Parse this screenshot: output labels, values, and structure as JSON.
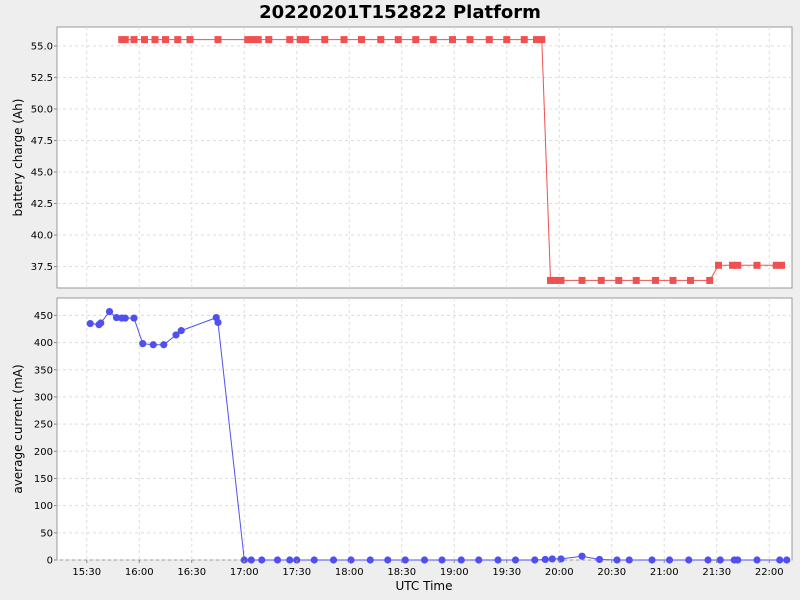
{
  "chart_data": {
    "type": "line",
    "title": "20220201T152822 Platform",
    "xlabel": "UTC Time",
    "x_ticks": [
      "15:30",
      "16:00",
      "16:30",
      "17:00",
      "17:30",
      "18:00",
      "18:30",
      "19:00",
      "19:30",
      "20:00",
      "20:30",
      "21:00",
      "21:30",
      "22:00"
    ],
    "x_tick_minutes": [
      930,
      960,
      990,
      1020,
      1050,
      1080,
      1110,
      1140,
      1170,
      1200,
      1230,
      1260,
      1290,
      1320
    ],
    "xlim_minutes": [
      913,
      1333
    ],
    "grid": true,
    "legend": "none",
    "panels": [
      {
        "ylabel": "battery charge (Ah)",
        "ylim": [
          35.8,
          56.5
        ],
        "y_ticks": [
          37.5,
          40.0,
          42.5,
          45.0,
          47.5,
          50.0,
          52.5,
          55.0
        ],
        "marker": "square",
        "color": "#f05050",
        "x": [
          950,
          952,
          957,
          963,
          969,
          975,
          982,
          989,
          1005,
          1022,
          1025,
          1028,
          1034,
          1046,
          1052,
          1055,
          1066,
          1077,
          1087,
          1098,
          1108,
          1118,
          1128,
          1139,
          1149,
          1160,
          1170,
          1180,
          1187,
          1190,
          1195,
          1198,
          1201,
          1213,
          1224,
          1234,
          1244,
          1255,
          1265,
          1275,
          1286,
          1291,
          1299,
          1302,
          1313,
          1324,
          1327
        ],
        "y": [
          55.5,
          55.5,
          55.5,
          55.5,
          55.5,
          55.5,
          55.5,
          55.5,
          55.5,
          55.5,
          55.5,
          55.5,
          55.5,
          55.5,
          55.5,
          55.5,
          55.5,
          55.5,
          55.5,
          55.5,
          55.5,
          55.5,
          55.5,
          55.5,
          55.5,
          55.5,
          55.5,
          55.5,
          55.5,
          55.5,
          36.4,
          36.4,
          36.4,
          36.4,
          36.4,
          36.4,
          36.4,
          36.4,
          36.4,
          36.4,
          36.4,
          37.6,
          37.6,
          37.6,
          37.6,
          37.6,
          37.6
        ]
      },
      {
        "ylabel": "average current (mA)",
        "ylim": [
          0,
          482
        ],
        "y_ticks": [
          0,
          50,
          100,
          150,
          200,
          250,
          300,
          350,
          400,
          450
        ],
        "marker": "circle",
        "color": "#5050f0",
        "x": [
          932,
          937,
          938,
          943,
          947,
          950,
          952,
          957,
          962,
          968,
          974,
          981,
          984,
          1004,
          1005,
          1020,
          1024,
          1030,
          1039,
          1046,
          1050,
          1060,
          1071,
          1081,
          1092,
          1102,
          1112,
          1123,
          1133,
          1144,
          1154,
          1165,
          1175,
          1186,
          1192,
          1196,
          1201,
          1213,
          1223,
          1233,
          1240,
          1253,
          1263,
          1274,
          1285,
          1292,
          1300,
          1302,
          1313,
          1326,
          1330
        ],
        "y": [
          435,
          433,
          436,
          457,
          446,
          445,
          445,
          445,
          398,
          396,
          396,
          414,
          422,
          446,
          437,
          0,
          0,
          0,
          0,
          0,
          0,
          0,
          0,
          0,
          0,
          0,
          0,
          0,
          0,
          0,
          0,
          0,
          0,
          0,
          1,
          2,
          2,
          7,
          1,
          0,
          0,
          0,
          0,
          0,
          0,
          0,
          0,
          0,
          0,
          0,
          0
        ]
      }
    ]
  }
}
